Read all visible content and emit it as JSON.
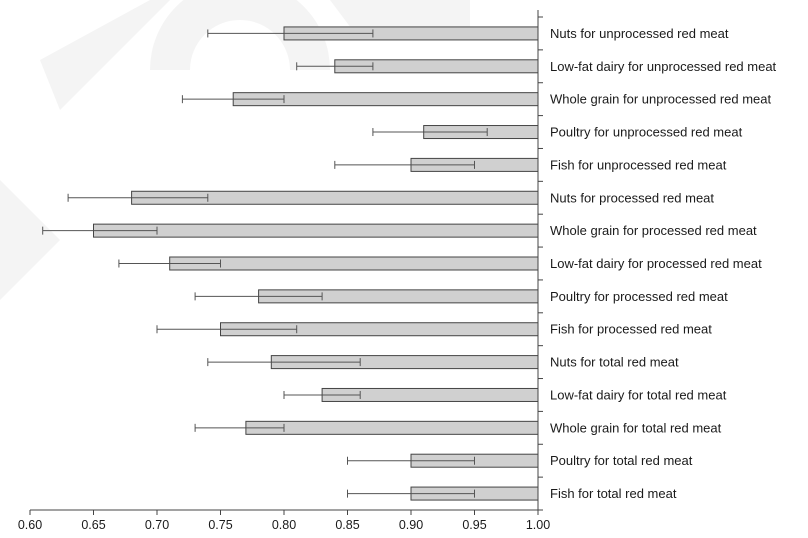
{
  "chart_data": {
    "type": "bar",
    "orientation": "horizontal",
    "categories": [
      "Nuts for unprocessed red meat",
      "Low-fat dairy for unprocessed red meat",
      "Whole grain for unprocessed red meat",
      "Poultry for unprocessed red meat",
      "Fish for unprocessed red meat",
      "Nuts for processed red meat",
      "Whole grain for processed red meat",
      "Low-fat dairy for processed red meat",
      "Poultry for processed red meat",
      "Fish for processed red meat",
      "Nuts for total red meat",
      "Low-fat dairy for total red meat",
      "Whole grain for total red meat",
      "Poultry for total red meat",
      "Fish for total red meat"
    ],
    "values": [
      0.8,
      0.84,
      0.76,
      0.91,
      0.9,
      0.68,
      0.65,
      0.71,
      0.78,
      0.75,
      0.79,
      0.83,
      0.77,
      0.9,
      0.9
    ],
    "ci_lower": [
      0.74,
      0.81,
      0.72,
      0.87,
      0.84,
      0.63,
      0.61,
      0.67,
      0.73,
      0.7,
      0.74,
      0.8,
      0.73,
      0.85,
      0.85
    ],
    "ci_upper": [
      0.87,
      0.87,
      0.8,
      0.96,
      0.95,
      0.74,
      0.7,
      0.75,
      0.83,
      0.81,
      0.86,
      0.86,
      0.8,
      0.95,
      0.95
    ],
    "bars_anchored_at": 1.0,
    "xlim": [
      0.6,
      1.0
    ],
    "xticks": [
      "0.60",
      "0.65",
      "0.70",
      "0.75",
      "0.80",
      "0.85",
      "0.90",
      "0.95",
      "1.00"
    ],
    "title": "",
    "xlabel": "",
    "ylabel": "",
    "grid": false,
    "legend": "none",
    "bar_color": "#d0d0d0",
    "bar_edge_color": "#444444"
  }
}
